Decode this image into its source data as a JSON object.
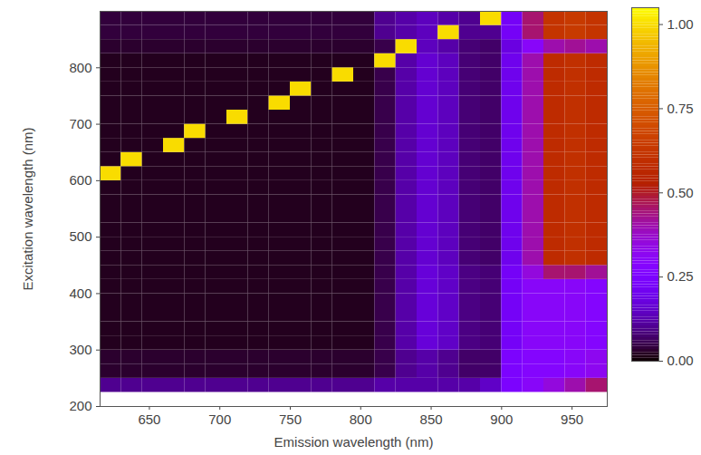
{
  "chart_data": {
    "type": "heatmap",
    "x_label": "Emission wavelength (nm)",
    "y_label": "Excitation wavelength (nm)",
    "xlim": [
      615,
      975
    ],
    "ylim": [
      200,
      900
    ],
    "xticks": [
      650,
      700,
      750,
      800,
      850,
      900,
      950
    ],
    "yticks": [
      200,
      300,
      400,
      500,
      600,
      700,
      800
    ],
    "grid": false,
    "emission_edges": [
      615,
      630,
      645,
      660,
      675,
      690,
      705,
      720,
      735,
      750,
      765,
      780,
      795,
      810,
      825,
      840,
      855,
      870,
      885,
      900,
      915,
      930,
      945,
      960,
      975
    ],
    "excitation_edges": [
      225,
      250,
      275,
      300,
      325,
      350,
      375,
      400,
      425,
      450,
      475,
      500,
      525,
      550,
      575,
      600,
      625,
      650,
      675,
      700,
      725,
      750,
      775,
      800,
      825,
      850,
      875,
      900
    ],
    "intensity": [
      [
        0.1,
        0.1,
        0.1,
        0.1,
        0.1,
        0.1,
        0.1,
        0.1,
        0.1,
        0.1,
        0.1,
        0.1,
        0.1,
        0.12,
        0.12,
        0.12,
        0.12,
        0.12,
        0.15,
        0.25,
        0.3,
        0.35,
        0.4,
        0.45
      ],
      [
        0.03,
        0.03,
        0.03,
        0.03,
        0.03,
        0.03,
        0.03,
        0.03,
        0.03,
        0.03,
        0.03,
        0.03,
        0.03,
        0.05,
        0.1,
        0.12,
        0.1,
        0.07,
        0.07,
        0.25,
        0.28,
        0.28,
        0.3,
        0.32
      ],
      [
        0.03,
        0.03,
        0.03,
        0.03,
        0.03,
        0.03,
        0.03,
        0.03,
        0.03,
        0.03,
        0.03,
        0.03,
        0.03,
        0.05,
        0.1,
        0.12,
        0.1,
        0.07,
        0.07,
        0.25,
        0.28,
        0.28,
        0.3,
        0.32
      ],
      [
        0.02,
        0.02,
        0.02,
        0.02,
        0.02,
        0.02,
        0.02,
        0.02,
        0.02,
        0.02,
        0.02,
        0.02,
        0.02,
        0.05,
        0.12,
        0.17,
        0.15,
        0.09,
        0.08,
        0.22,
        0.3,
        0.3,
        0.3,
        0.28
      ],
      [
        0.02,
        0.02,
        0.02,
        0.02,
        0.02,
        0.02,
        0.02,
        0.02,
        0.02,
        0.02,
        0.02,
        0.02,
        0.02,
        0.05,
        0.12,
        0.17,
        0.15,
        0.09,
        0.08,
        0.22,
        0.3,
        0.3,
        0.3,
        0.28
      ],
      [
        0.02,
        0.02,
        0.02,
        0.02,
        0.02,
        0.02,
        0.02,
        0.02,
        0.02,
        0.02,
        0.02,
        0.02,
        0.02,
        0.05,
        0.12,
        0.17,
        0.15,
        0.09,
        0.08,
        0.22,
        0.3,
        0.3,
        0.3,
        0.28
      ],
      [
        0.02,
        0.02,
        0.02,
        0.02,
        0.02,
        0.02,
        0.02,
        0.02,
        0.02,
        0.02,
        0.02,
        0.02,
        0.02,
        0.05,
        0.12,
        0.17,
        0.15,
        0.09,
        0.08,
        0.22,
        0.3,
        0.3,
        0.3,
        0.28
      ],
      [
        0.02,
        0.02,
        0.02,
        0.02,
        0.02,
        0.02,
        0.02,
        0.02,
        0.02,
        0.02,
        0.02,
        0.02,
        0.02,
        0.05,
        0.12,
        0.17,
        0.15,
        0.09,
        0.08,
        0.22,
        0.3,
        0.3,
        0.3,
        0.28
      ],
      [
        0.02,
        0.02,
        0.02,
        0.02,
        0.02,
        0.02,
        0.02,
        0.02,
        0.02,
        0.02,
        0.02,
        0.02,
        0.02,
        0.05,
        0.12,
        0.17,
        0.15,
        0.09,
        0.08,
        0.22,
        0.35,
        0.45,
        0.45,
        0.42
      ],
      [
        0.02,
        0.02,
        0.02,
        0.02,
        0.02,
        0.02,
        0.02,
        0.02,
        0.02,
        0.02,
        0.02,
        0.02,
        0.02,
        0.05,
        0.12,
        0.16,
        0.14,
        0.08,
        0.07,
        0.2,
        0.4,
        0.58,
        0.6,
        0.58
      ],
      [
        0.02,
        0.02,
        0.02,
        0.02,
        0.02,
        0.02,
        0.02,
        0.02,
        0.02,
        0.02,
        0.02,
        0.02,
        0.02,
        0.05,
        0.12,
        0.16,
        0.14,
        0.08,
        0.07,
        0.2,
        0.4,
        0.58,
        0.6,
        0.58
      ],
      [
        0.02,
        0.02,
        0.02,
        0.02,
        0.02,
        0.02,
        0.02,
        0.02,
        0.02,
        0.02,
        0.02,
        0.02,
        0.02,
        0.05,
        0.12,
        0.16,
        0.14,
        0.08,
        0.07,
        0.2,
        0.4,
        0.58,
        0.6,
        0.58
      ],
      [
        0.02,
        0.02,
        0.02,
        0.02,
        0.02,
        0.02,
        0.02,
        0.02,
        0.02,
        0.02,
        0.02,
        0.02,
        0.02,
        0.05,
        0.12,
        0.16,
        0.14,
        0.08,
        0.07,
        0.2,
        0.4,
        0.58,
        0.6,
        0.58
      ],
      [
        0.02,
        0.02,
        0.02,
        0.02,
        0.02,
        0.02,
        0.02,
        0.02,
        0.02,
        0.02,
        0.02,
        0.02,
        0.02,
        0.05,
        0.12,
        0.16,
        0.14,
        0.08,
        0.07,
        0.2,
        0.4,
        0.58,
        0.6,
        0.58
      ],
      [
        0.02,
        0.02,
        0.02,
        0.02,
        0.02,
        0.02,
        0.02,
        0.02,
        0.02,
        0.02,
        0.02,
        0.02,
        0.02,
        0.05,
        0.12,
        0.16,
        0.14,
        0.08,
        0.07,
        0.2,
        0.4,
        0.58,
        0.6,
        0.58
      ],
      [
        1,
        0.02,
        0.02,
        0.02,
        0.02,
        0.02,
        0.02,
        0.02,
        0.02,
        0.02,
        0.02,
        0.02,
        0.02,
        0.05,
        0.12,
        0.16,
        0.14,
        0.08,
        0.07,
        0.2,
        0.4,
        0.58,
        0.6,
        0.58
      ],
      [
        0.02,
        1,
        0.02,
        0.02,
        0.02,
        0.02,
        0.02,
        0.02,
        0.02,
        0.02,
        0.02,
        0.02,
        0.02,
        0.05,
        0.12,
        0.16,
        0.14,
        0.08,
        0.07,
        0.2,
        0.4,
        0.58,
        0.6,
        0.58
      ],
      [
        0.02,
        0.02,
        0.02,
        1,
        0.02,
        0.02,
        0.02,
        0.02,
        0.02,
        0.02,
        0.02,
        0.02,
        0.02,
        0.05,
        0.12,
        0.16,
        0.14,
        0.08,
        0.07,
        0.2,
        0.4,
        0.58,
        0.6,
        0.58
      ],
      [
        0.02,
        0.02,
        0.02,
        0.02,
        1,
        0.02,
        0.02,
        0.02,
        0.02,
        0.02,
        0.02,
        0.02,
        0.02,
        0.05,
        0.12,
        0.16,
        0.14,
        0.08,
        0.07,
        0.2,
        0.4,
        0.58,
        0.6,
        0.58
      ],
      [
        0.02,
        0.02,
        0.02,
        0.02,
        0.02,
        0.02,
        1,
        0.02,
        0.02,
        0.02,
        0.02,
        0.02,
        0.02,
        0.05,
        0.12,
        0.16,
        0.14,
        0.08,
        0.07,
        0.2,
        0.4,
        0.58,
        0.6,
        0.58
      ],
      [
        0.02,
        0.02,
        0.02,
        0.02,
        0.02,
        0.02,
        0.02,
        0.02,
        1,
        0.02,
        0.02,
        0.02,
        0.02,
        0.05,
        0.12,
        0.16,
        0.14,
        0.08,
        0.07,
        0.2,
        0.4,
        0.58,
        0.6,
        0.58
      ],
      [
        0.02,
        0.02,
        0.02,
        0.02,
        0.02,
        0.02,
        0.02,
        0.02,
        0.02,
        1,
        0.02,
        0.02,
        0.02,
        0.05,
        0.12,
        0.16,
        0.14,
        0.08,
        0.07,
        0.2,
        0.4,
        0.58,
        0.6,
        0.58
      ],
      [
        0.02,
        0.02,
        0.02,
        0.02,
        0.02,
        0.02,
        0.02,
        0.02,
        0.02,
        0.02,
        0.02,
        1,
        0.02,
        0.05,
        0.12,
        0.16,
        0.14,
        0.08,
        0.07,
        0.2,
        0.4,
        0.58,
        0.6,
        0.58
      ],
      [
        0.02,
        0.02,
        0.02,
        0.02,
        0.02,
        0.02,
        0.02,
        0.02,
        0.02,
        0.02,
        0.02,
        0.02,
        0.02,
        1,
        0.12,
        0.16,
        0.14,
        0.08,
        0.07,
        0.2,
        0.4,
        0.58,
        0.6,
        0.58
      ],
      [
        0.03,
        0.03,
        0.03,
        0.03,
        0.03,
        0.03,
        0.03,
        0.03,
        0.03,
        0.03,
        0.03,
        0.03,
        0.03,
        0.05,
        1,
        0.14,
        0.12,
        0.08,
        0.07,
        0.18,
        0.3,
        0.4,
        0.42,
        0.4
      ],
      [
        0.04,
        0.04,
        0.04,
        0.04,
        0.04,
        0.04,
        0.04,
        0.04,
        0.04,
        0.04,
        0.04,
        0.04,
        0.04,
        0.1,
        0.12,
        0.14,
        1,
        0.1,
        0.1,
        0.22,
        0.45,
        0.62,
        0.64,
        0.62
      ],
      [
        0.04,
        0.04,
        0.04,
        0.04,
        0.04,
        0.04,
        0.04,
        0.04,
        0.04,
        0.04,
        0.04,
        0.04,
        0.04,
        0.1,
        0.12,
        0.14,
        0.12,
        0.1,
        1,
        0.22,
        0.45,
        0.62,
        0.64,
        0.62
      ]
    ],
    "colorbar": {
      "range": [
        0,
        1.05
      ],
      "ticks": [
        {
          "value": 0,
          "label": "0.00"
        },
        {
          "value": 0.25,
          "label": "0.25"
        },
        {
          "value": 0.5,
          "label": "0.50"
        },
        {
          "value": 0.75,
          "label": "0.75"
        },
        {
          "value": 1,
          "label": "1.00"
        }
      ]
    }
  }
}
